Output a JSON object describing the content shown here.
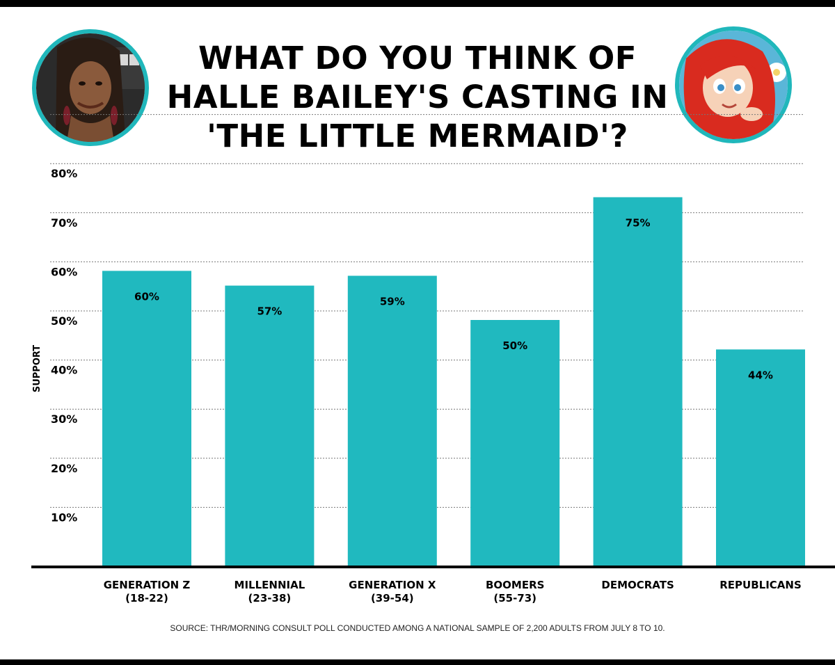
{
  "title": {
    "line1": "WHAT DO YOU THINK OF",
    "line2": "HALLE BAILEY'S CASTING IN",
    "line3": "'THE LITTLE MERMAID'?"
  },
  "images": {
    "left": "photo of Halle Bailey",
    "right": "Ariel from The Little Mermaid"
  },
  "colors": {
    "bar": "#20b9bf",
    "accent": "#20b7bb",
    "axis": "#000000"
  },
  "source": "SOURCE: THR/MORNING CONSULT POLL CONDUCTED AMONG A NATIONAL SAMPLE OF 2,200 ADULTS FROM JULY 8 TO 10.",
  "chart_data": {
    "type": "bar",
    "ylabel": "SUPPORT",
    "ylim": [
      0,
      80
    ],
    "yticks": [
      "10%",
      "20%",
      "30%",
      "40%",
      "50%",
      "60%",
      "70%",
      "80%"
    ],
    "grid": true,
    "categories": [
      [
        "GENERATION Z",
        "(18-22)"
      ],
      [
        "MILLENNIAL",
        "(23-38)"
      ],
      [
        "GENERATION X",
        "(39-54)"
      ],
      [
        "BOOMERS",
        "(55-73)"
      ],
      [
        "DEMOCRATS"
      ],
      [
        "REPUBLICANS"
      ]
    ],
    "values": [
      60,
      57,
      59,
      50,
      75,
      44
    ],
    "labels": [
      "60%",
      "57%",
      "59%",
      "50%",
      "75%",
      "44%"
    ]
  }
}
